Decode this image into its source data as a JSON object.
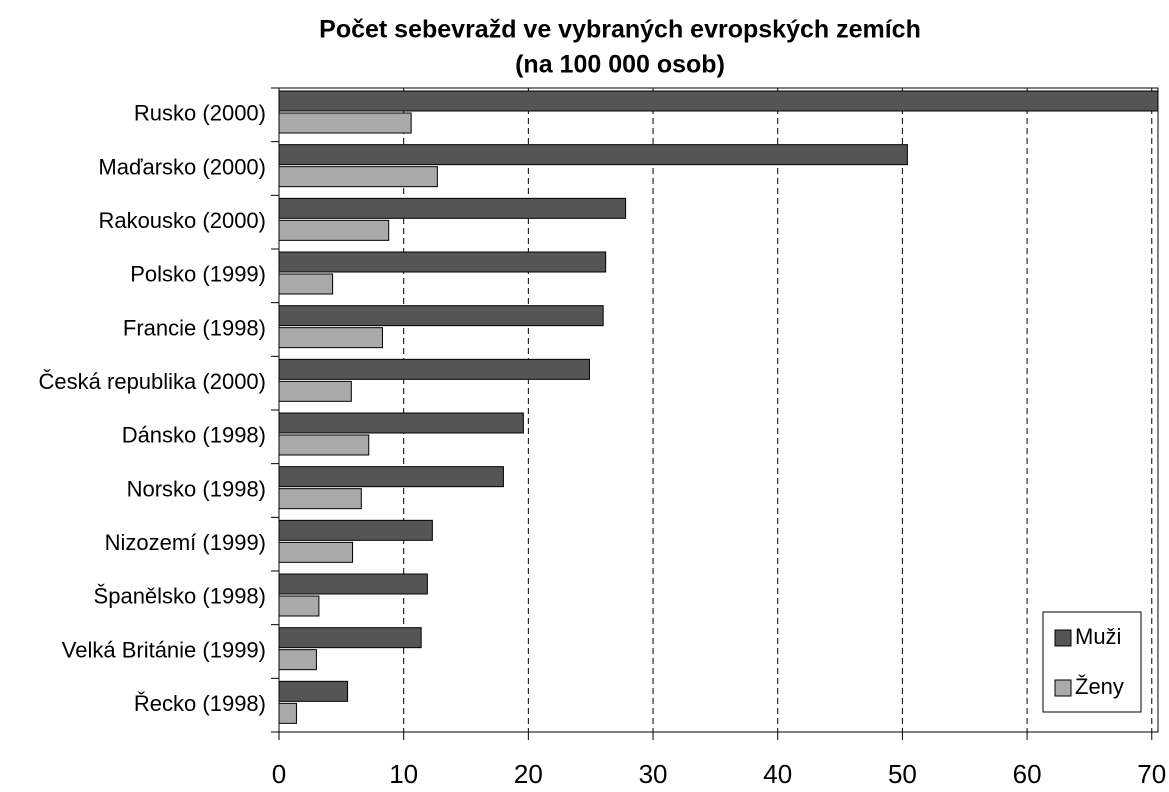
{
  "chart_data": {
    "type": "hbar",
    "title": "Počet sebevražd ve vybraných evropských zemích",
    "subtitle": "(na 100 000 osob)",
    "categories": [
      "Rusko (2000)",
      "Maďarsko (2000)",
      "Rakousko (2000)",
      "Polsko (1999)",
      "Francie (1998)",
      "Česká republika (2000)",
      "Dánsko (1998)",
      "Norsko (1998)",
      "Nizozemí (1999)",
      "Španělsko (1998)",
      "Velká Británie (1999)",
      "Řecko (1998)"
    ],
    "series": [
      {
        "name": "Muži",
        "color": "#555555",
        "values": [
          70.5,
          50.4,
          27.8,
          26.2,
          26.0,
          24.9,
          19.6,
          18.0,
          12.3,
          11.9,
          11.4,
          5.5
        ]
      },
      {
        "name": "Ženy",
        "color": "#aaaaaa",
        "values": [
          10.6,
          12.7,
          8.8,
          4.3,
          8.3,
          5.8,
          7.2,
          6.6,
          5.9,
          3.2,
          3.0,
          1.4
        ]
      }
    ],
    "xlim": [
      0,
      70.5
    ],
    "xticks": [
      0,
      10,
      20,
      30,
      40,
      50,
      60,
      70
    ],
    "grid": true,
    "legend": "lower right"
  }
}
